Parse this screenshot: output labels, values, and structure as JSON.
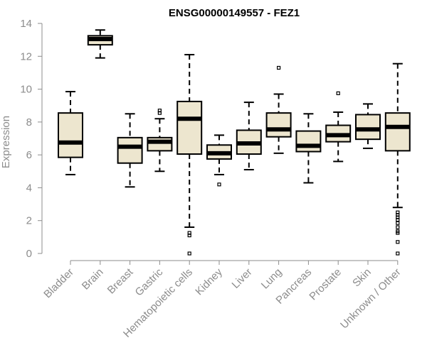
{
  "chart_data": {
    "type": "boxplot",
    "title": "ENSG00000149557 - FEZ1",
    "xlabel": "",
    "ylabel": "Expression",
    "ylim": [
      0,
      14
    ],
    "yticks": [
      0,
      2,
      4,
      6,
      8,
      10,
      12,
      14
    ],
    "categories": [
      "Bladder",
      "Brain",
      "Breast",
      "Gastric",
      "Hematopoietic cells",
      "Kidney",
      "Liver",
      "Lung",
      "Pancreas",
      "Prostate",
      "Skin",
      "Unknown / Other"
    ],
    "boxes": [
      {
        "name": "Bladder",
        "min": 4.8,
        "q1": 5.85,
        "median": 6.75,
        "q3": 8.55,
        "max": 9.85,
        "outliers": []
      },
      {
        "name": "Brain",
        "min": 11.9,
        "q1": 12.7,
        "median": 13.05,
        "q3": 13.25,
        "max": 13.6,
        "outliers": []
      },
      {
        "name": "Breast",
        "min": 4.05,
        "q1": 5.5,
        "median": 6.5,
        "q3": 7.05,
        "max": 8.5,
        "outliers": []
      },
      {
        "name": "Gastric",
        "min": 5.0,
        "q1": 6.25,
        "median": 6.8,
        "q3": 7.05,
        "max": 8.2,
        "outliers": [
          8.55,
          8.7
        ]
      },
      {
        "name": "Hematopoietic cells",
        "min": 1.6,
        "q1": 6.05,
        "median": 8.2,
        "q3": 9.25,
        "max": 12.1,
        "outliers": [
          1.25,
          1.1,
          0.0
        ]
      },
      {
        "name": "Kidney",
        "min": 4.8,
        "q1": 5.75,
        "median": 6.1,
        "q3": 6.6,
        "max": 7.2,
        "outliers": [
          4.2
        ]
      },
      {
        "name": "Liver",
        "min": 5.1,
        "q1": 6.05,
        "median": 6.7,
        "q3": 7.5,
        "max": 9.2,
        "outliers": []
      },
      {
        "name": "Lung",
        "min": 6.1,
        "q1": 7.1,
        "median": 7.55,
        "q3": 8.55,
        "max": 9.7,
        "outliers": [
          11.3
        ]
      },
      {
        "name": "Pancreas",
        "min": 4.3,
        "q1": 6.2,
        "median": 6.55,
        "q3": 7.45,
        "max": 8.5,
        "outliers": []
      },
      {
        "name": "Prostate",
        "min": 5.6,
        "q1": 6.8,
        "median": 7.2,
        "q3": 7.8,
        "max": 8.6,
        "outliers": [
          9.75
        ]
      },
      {
        "name": "Skin",
        "min": 6.4,
        "q1": 6.95,
        "median": 7.55,
        "q3": 8.45,
        "max": 9.1,
        "outliers": []
      },
      {
        "name": "Unknown / Other",
        "min": 2.8,
        "q1": 6.25,
        "median": 7.7,
        "q3": 8.55,
        "max": 11.55,
        "outliers": [
          2.5,
          2.35,
          2.2,
          2.05,
          1.85,
          1.6,
          1.35,
          1.25,
          0.7,
          0.0
        ]
      }
    ]
  }
}
